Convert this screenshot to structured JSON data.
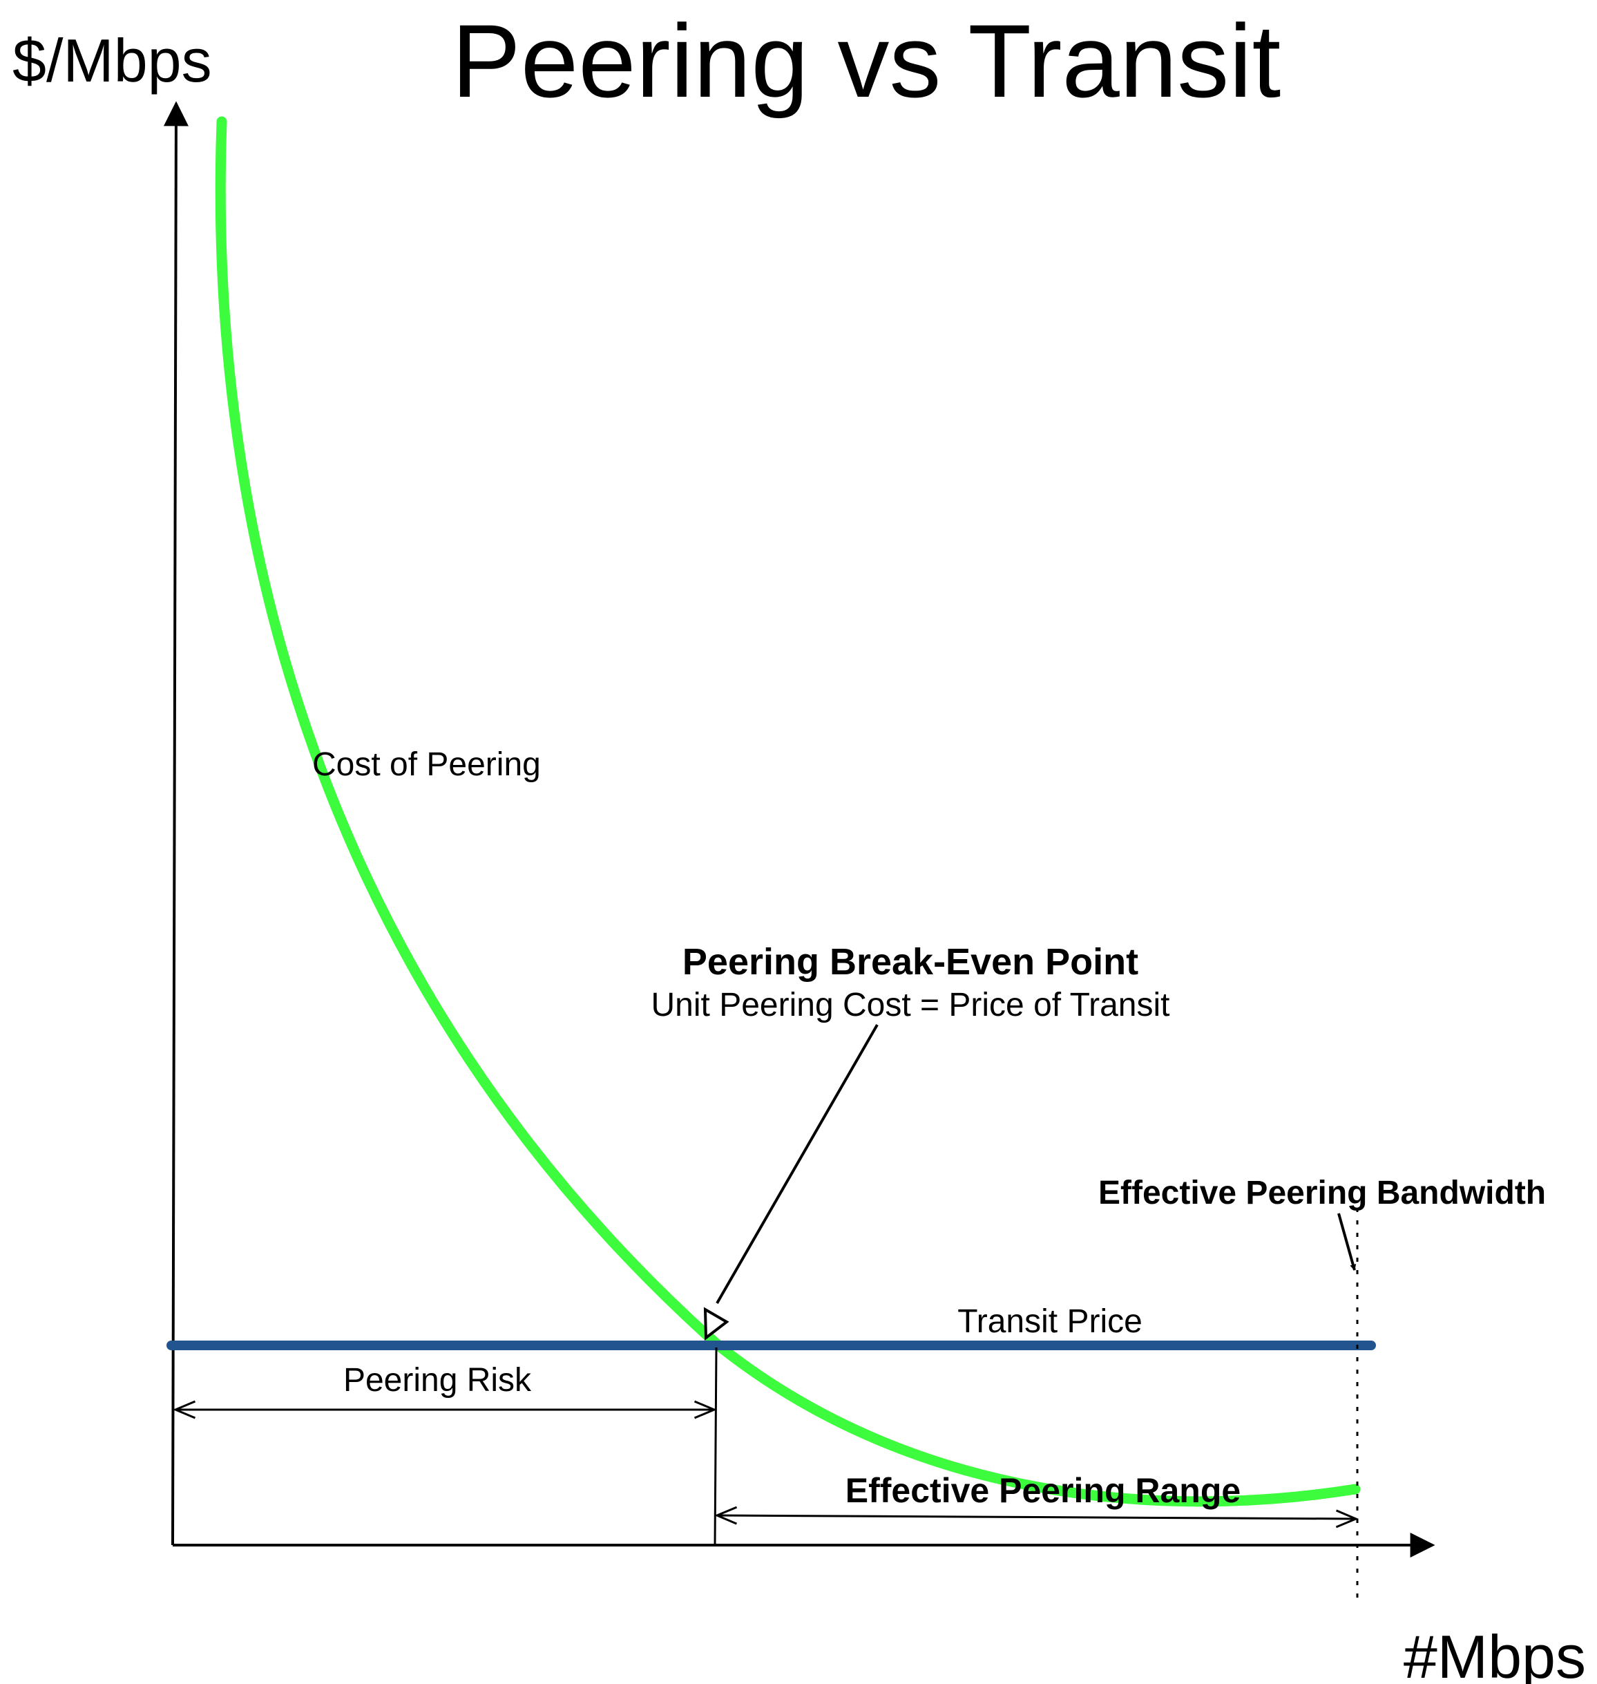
{
  "diagram": {
    "title": "Peering vs Transit",
    "y_axis_label": "$/Mbps",
    "x_axis_label": "#Mbps",
    "curves": {
      "peering_cost_label": "Cost of Peering",
      "transit_price_label": "Transit Price"
    },
    "annotations": {
      "break_even_title": "Peering Break-Even Point",
      "break_even_subtitle": "Unit Peering Cost = Price of Transit",
      "effective_bandwidth": "Effective Peering Bandwidth",
      "peering_risk": "Peering Risk",
      "effective_range": "Effective Peering Range"
    },
    "colors": {
      "peering_curve": "#3dfb3d",
      "transit_line": "#22548f",
      "ink": "#000000"
    }
  }
}
